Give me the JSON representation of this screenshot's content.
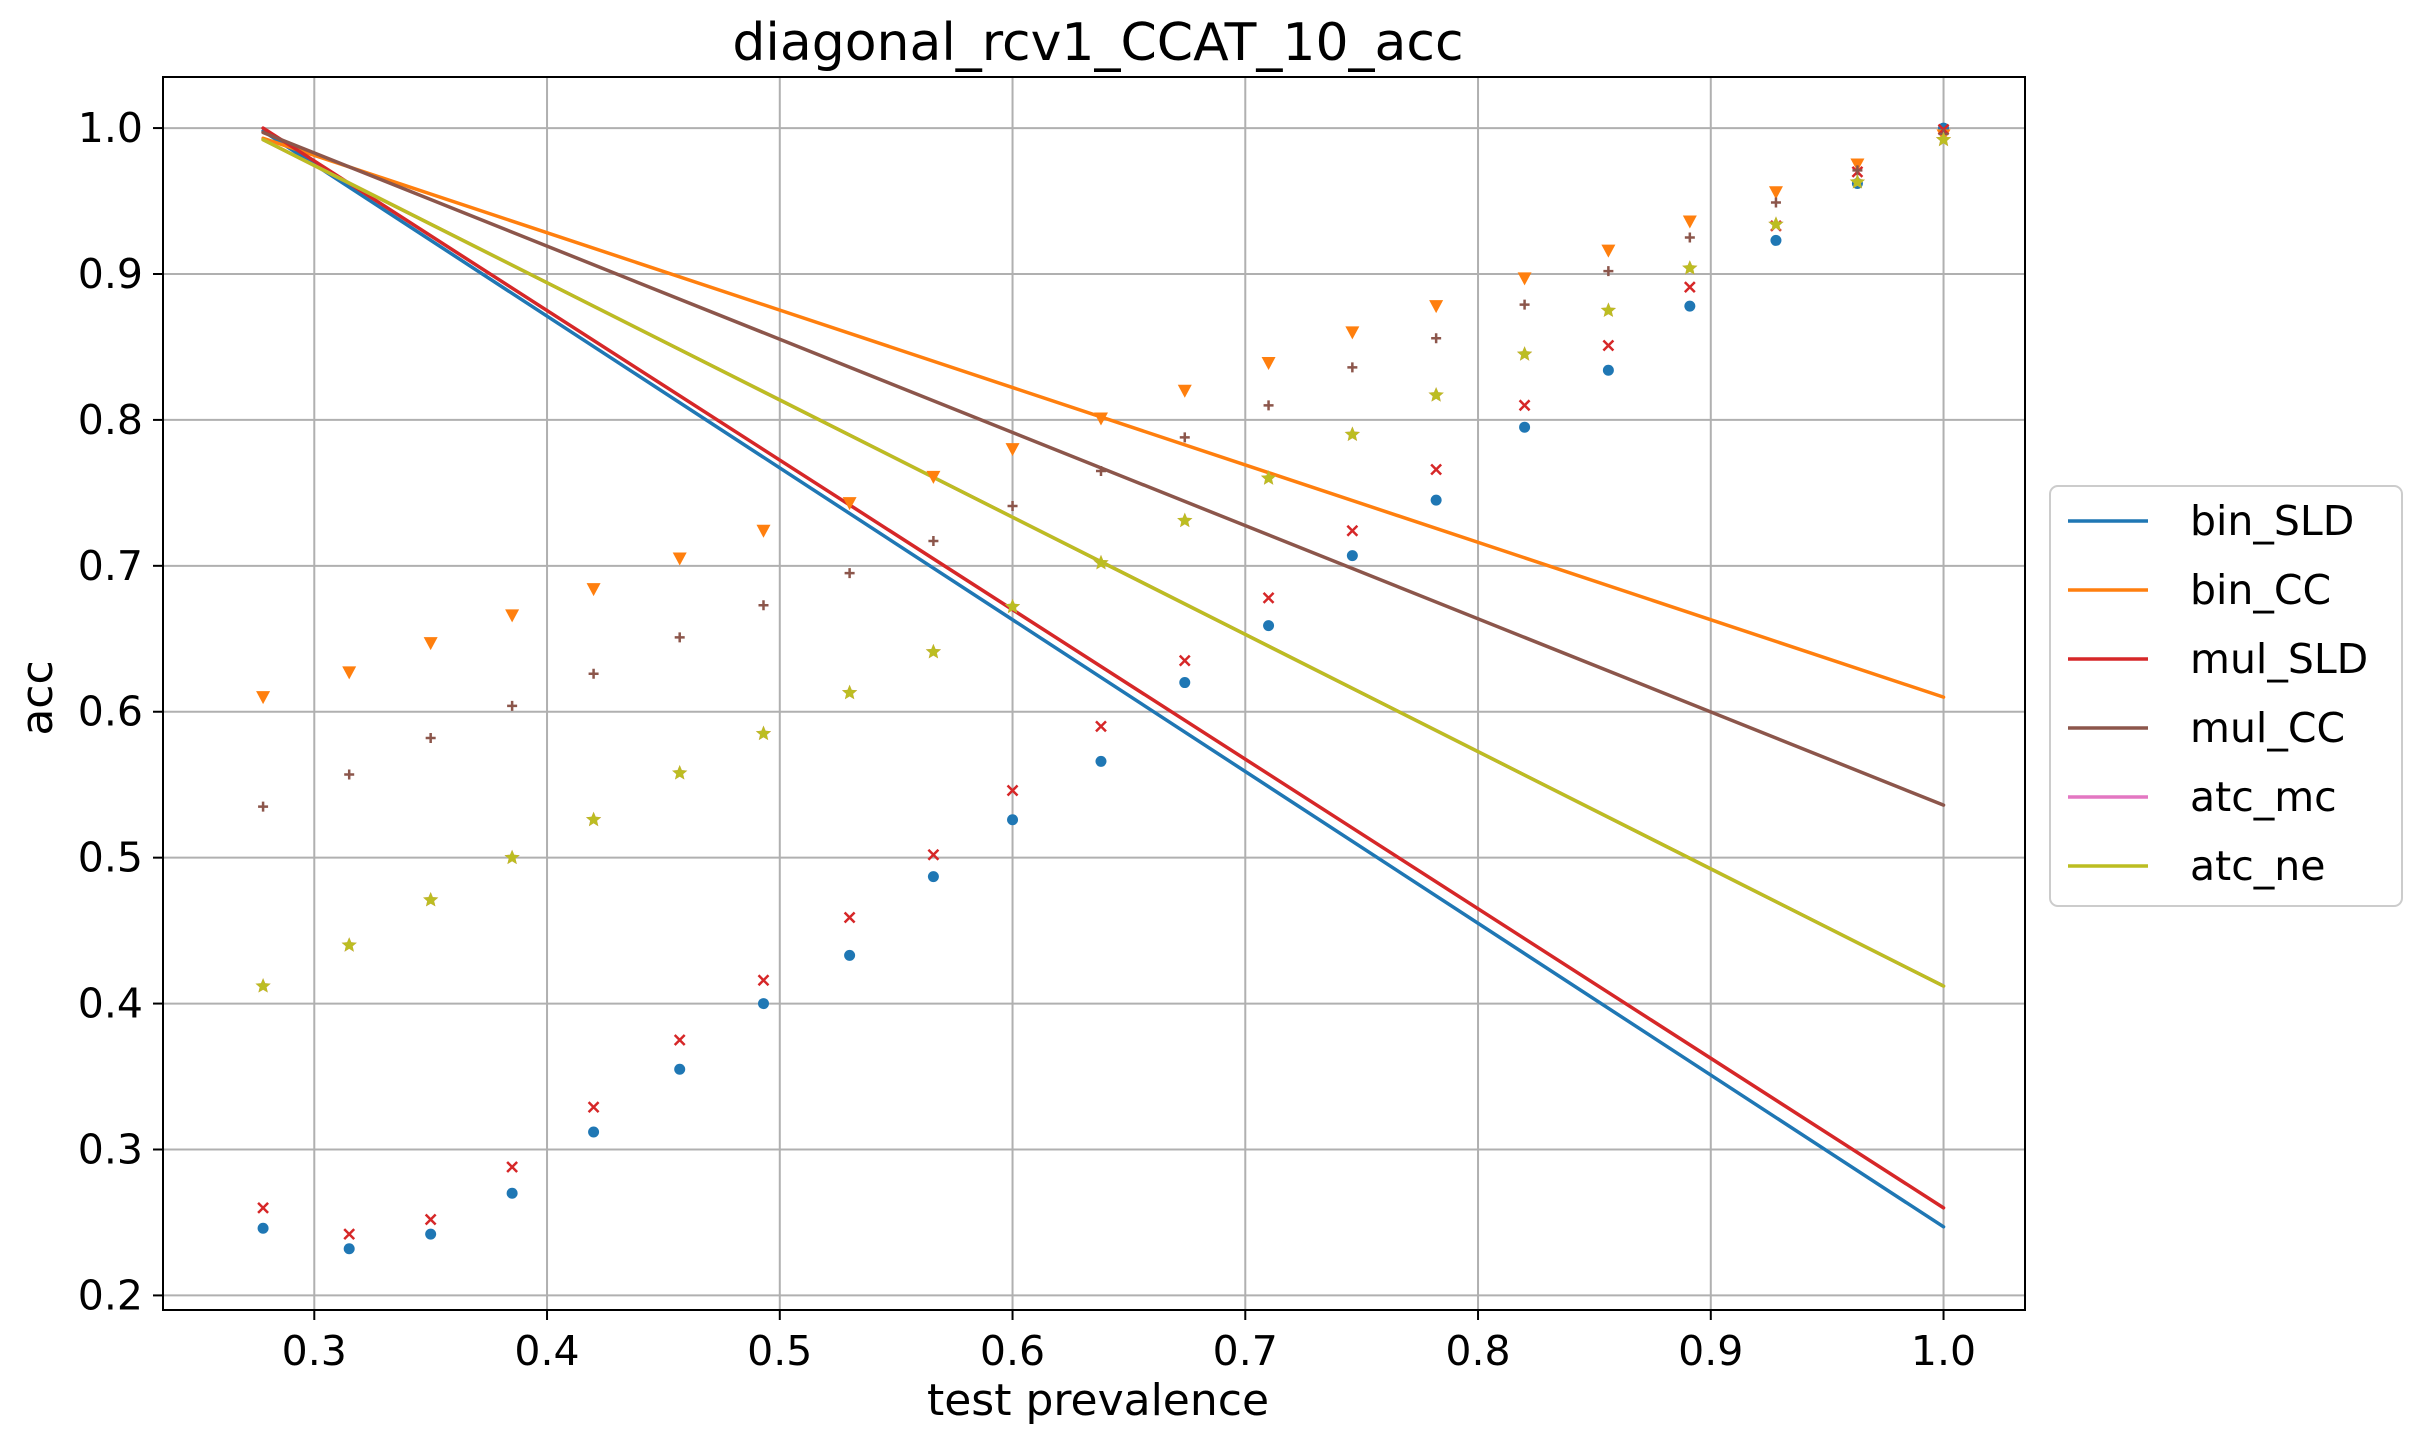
{
  "chart_data": {
    "type": "line",
    "title": "diagonal_rcv1_CCAT_10_acc",
    "xlabel": "test prevalence",
    "ylabel": "acc",
    "xlim": [
      0.235,
      1.035
    ],
    "ylim": [
      0.19,
      1.035
    ],
    "x_ticks": [
      "0.3",
      "0.4",
      "0.5",
      "0.6",
      "0.7",
      "0.8",
      "0.9",
      "1.0"
    ],
    "y_ticks": [
      "0.2",
      "0.3",
      "0.4",
      "0.5",
      "0.6",
      "0.7",
      "0.8",
      "0.9",
      "1.0"
    ],
    "grid": true,
    "legend_position": "center-right",
    "x": [
      0.278,
      0.315,
      0.35,
      0.385,
      0.42,
      0.457,
      0.493,
      0.53,
      0.566,
      0.6,
      0.638,
      0.674,
      0.71,
      0.746,
      0.782,
      0.82,
      0.856,
      0.891,
      0.928,
      0.963,
      1.0
    ],
    "series": [
      {
        "name": "bin_SLD",
        "color": "#1f77b4",
        "marker": "dot",
        "line": [
          [
            0.278,
            0.998
          ],
          [
            1.0,
            0.247
          ]
        ],
        "points": [
          0.246,
          0.232,
          0.242,
          0.27,
          0.312,
          0.355,
          0.4,
          0.433,
          0.487,
          0.526,
          0.566,
          0.62,
          0.659,
          0.707,
          0.745,
          0.795,
          0.834,
          0.878,
          0.923,
          0.962,
          1.0
        ]
      },
      {
        "name": "bin_CC",
        "color": "#ff7f0e",
        "marker": "triangle-down",
        "line": [
          [
            0.278,
            0.993
          ],
          [
            1.0,
            0.61
          ]
        ],
        "points": [
          0.61,
          0.627,
          0.647,
          0.666,
          0.684,
          0.705,
          0.724,
          0.743,
          0.761,
          0.78,
          0.801,
          0.82,
          0.839,
          0.86,
          0.878,
          0.897,
          0.916,
          0.936,
          0.956,
          0.975,
          0.995
        ]
      },
      {
        "name": "mul_SLD",
        "color": "#d62728",
        "marker": "x",
        "line": [
          [
            0.278,
            1.0
          ],
          [
            1.0,
            0.26
          ]
        ],
        "points": [
          0.26,
          0.242,
          0.252,
          0.288,
          0.329,
          0.375,
          0.416,
          0.459,
          0.502,
          0.546,
          0.59,
          0.635,
          0.678,
          0.724,
          0.766,
          0.81,
          0.851,
          0.891,
          0.933,
          0.97,
          0.999
        ]
      },
      {
        "name": "mul_CC",
        "color": "#8c564b",
        "marker": "plus",
        "line": [
          [
            0.278,
            0.997
          ],
          [
            1.0,
            0.536
          ]
        ],
        "points": [
          0.535,
          0.557,
          0.582,
          0.604,
          0.626,
          0.651,
          0.673,
          0.695,
          0.717,
          0.741,
          0.765,
          0.788,
          0.81,
          0.836,
          0.856,
          0.879,
          0.902,
          0.925,
          0.949,
          0.971,
          0.996
        ]
      },
      {
        "name": "atc_mc",
        "color": "#e377c2",
        "marker": "star",
        "line": [
          [
            0.278,
            0.992
          ],
          [
            1.0,
            0.412
          ]
        ],
        "points": [
          0.412,
          0.44,
          0.471,
          0.5,
          0.526,
          0.558,
          0.585,
          0.613,
          0.641,
          0.672,
          0.702,
          0.731,
          0.76,
          0.79,
          0.817,
          0.845,
          0.875,
          0.904,
          0.934,
          0.963,
          0.992
        ]
      },
      {
        "name": "atc_ne",
        "color": "#bcbd22",
        "marker": "star",
        "line": [
          [
            0.278,
            0.992
          ],
          [
            1.0,
            0.412
          ]
        ],
        "points": [
          0.412,
          0.44,
          0.471,
          0.5,
          0.526,
          0.558,
          0.585,
          0.613,
          0.641,
          0.672,
          0.702,
          0.731,
          0.76,
          0.79,
          0.817,
          0.845,
          0.875,
          0.904,
          0.934,
          0.963,
          0.992
        ]
      }
    ]
  }
}
